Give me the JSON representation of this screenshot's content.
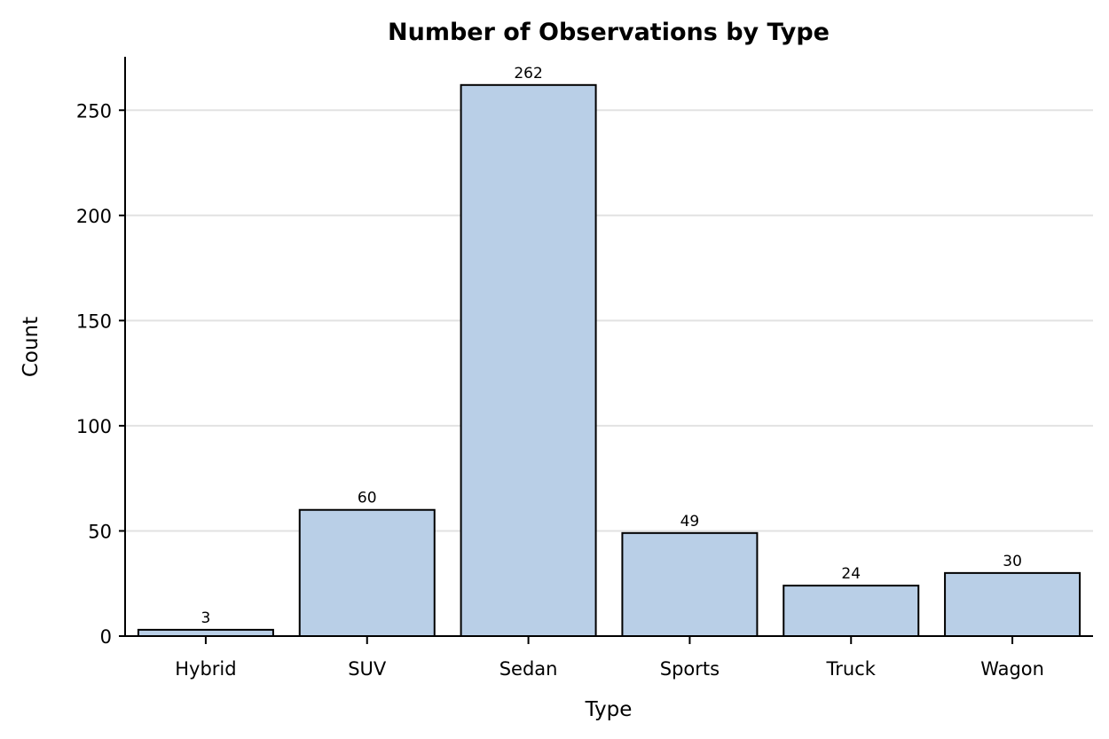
{
  "chart_data": {
    "type": "bar",
    "title": "Number of Observations by Type",
    "xlabel": "Type",
    "ylabel": "Count",
    "categories": [
      "Hybrid",
      "SUV",
      "Sedan",
      "Sports",
      "Truck",
      "Wagon"
    ],
    "values": [
      3,
      60,
      262,
      49,
      24,
      30
    ],
    "data_labels": [
      "3",
      "60",
      "262",
      "49",
      "24",
      "30"
    ],
    "ylim": [
      0,
      275
    ],
    "yticks": [
      0,
      50,
      100,
      150,
      200,
      250
    ],
    "grid": true,
    "legend": "none",
    "colors": {
      "bar_fill": "#b9cfe7",
      "bar_stroke": "#000000",
      "grid": "#e2e2e2"
    }
  }
}
